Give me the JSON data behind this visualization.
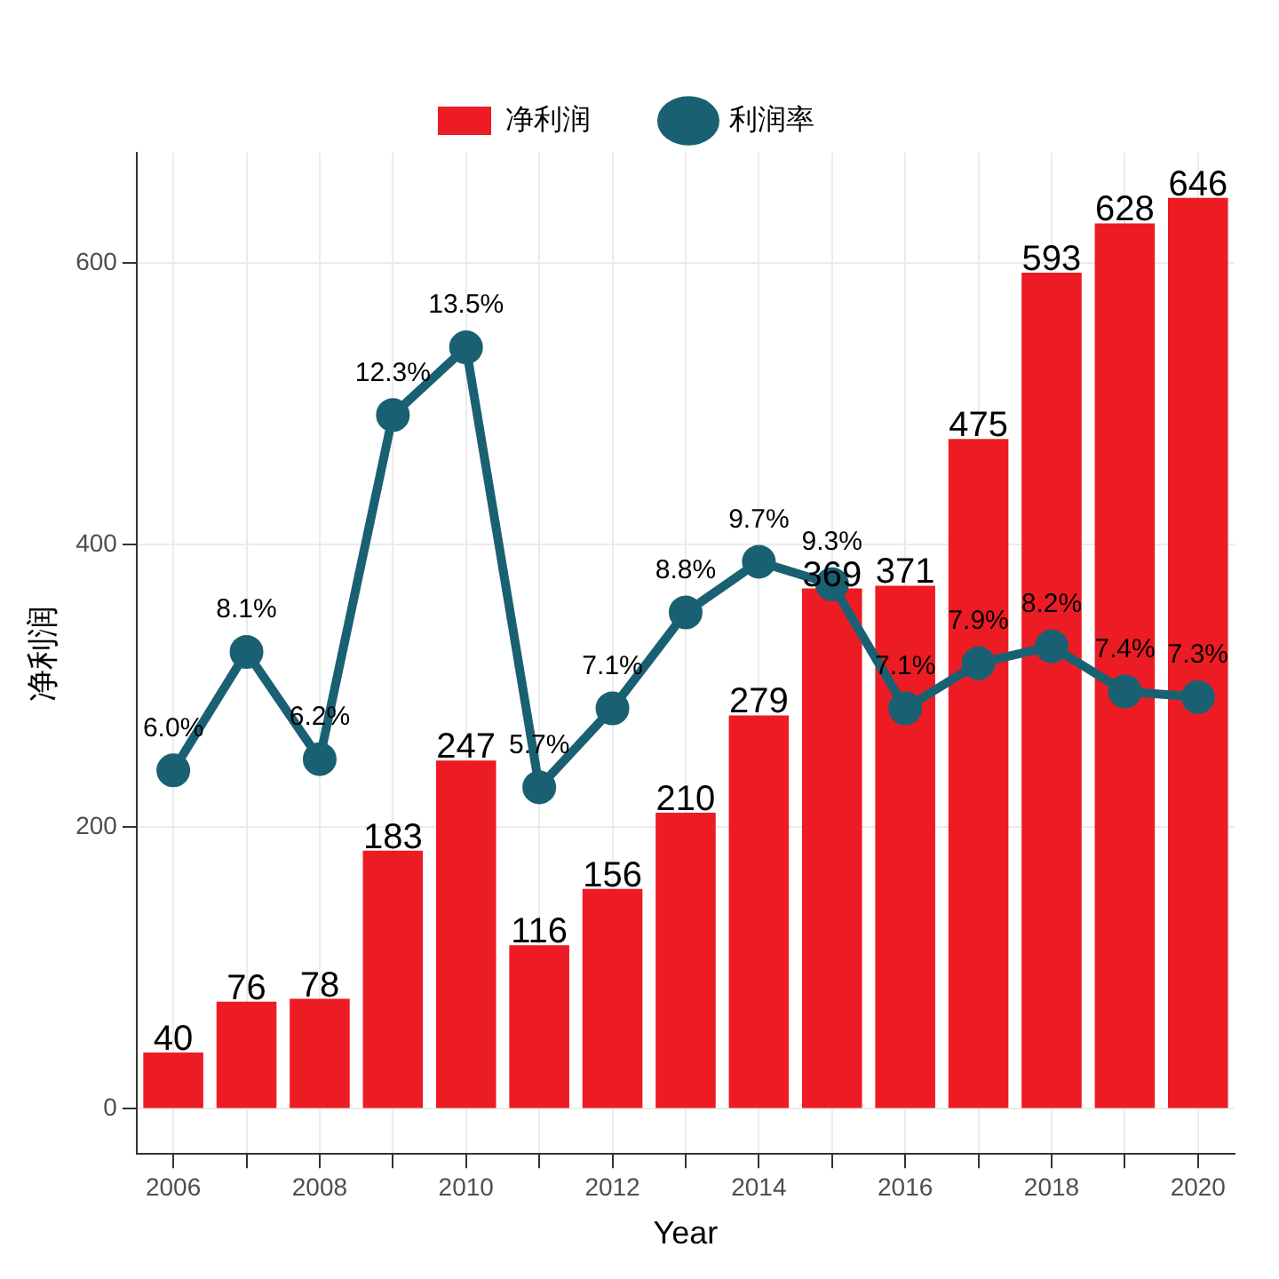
{
  "chart_data": {
    "type": "bar",
    "xlabel": "Year",
    "ylabel": "净利润",
    "categories": [
      "2006",
      null,
      "2008",
      null,
      "2010",
      null,
      "2012",
      null,
      "2014",
      null,
      "2016",
      null,
      "2018",
      null,
      "2020"
    ],
    "series": [
      {
        "name": "净利润",
        "color": "#ed1c24",
        "values": [
          40,
          76,
          78,
          183,
          247,
          116,
          156,
          210,
          279,
          369,
          371,
          475,
          593,
          628,
          646
        ],
        "value_labels": [
          "40",
          "76",
          "78",
          "183",
          "247",
          "116",
          "156",
          "210",
          "279",
          "369",
          "371",
          "475",
          "593",
          "628",
          "646"
        ]
      },
      {
        "name": "利润率",
        "type": "line",
        "axis": "y2",
        "color": "#1a6073",
        "values": [
          6.0,
          8.1,
          6.2,
          12.3,
          13.5,
          5.7,
          7.1,
          8.8,
          9.7,
          9.3,
          7.1,
          7.9,
          8.2,
          7.4,
          7.3
        ],
        "value_labels": [
          "6.0%",
          "8.1%",
          "6.2%",
          "12.3%",
          "13.5%",
          "5.7%",
          "7.1%",
          "8.8%",
          "9.7%",
          "9.3%",
          "7.1%",
          "7.9%",
          "8.2%",
          "7.4%",
          "7.3%"
        ]
      }
    ],
    "ylim": [
      -32,
      678
    ],
    "yticks": [
      0,
      200,
      400,
      600
    ],
    "y2lim": [
      -0.8,
      16.95
    ],
    "grid": true,
    "legend": "top",
    "marker": "circle",
    "line_style": "solid"
  }
}
